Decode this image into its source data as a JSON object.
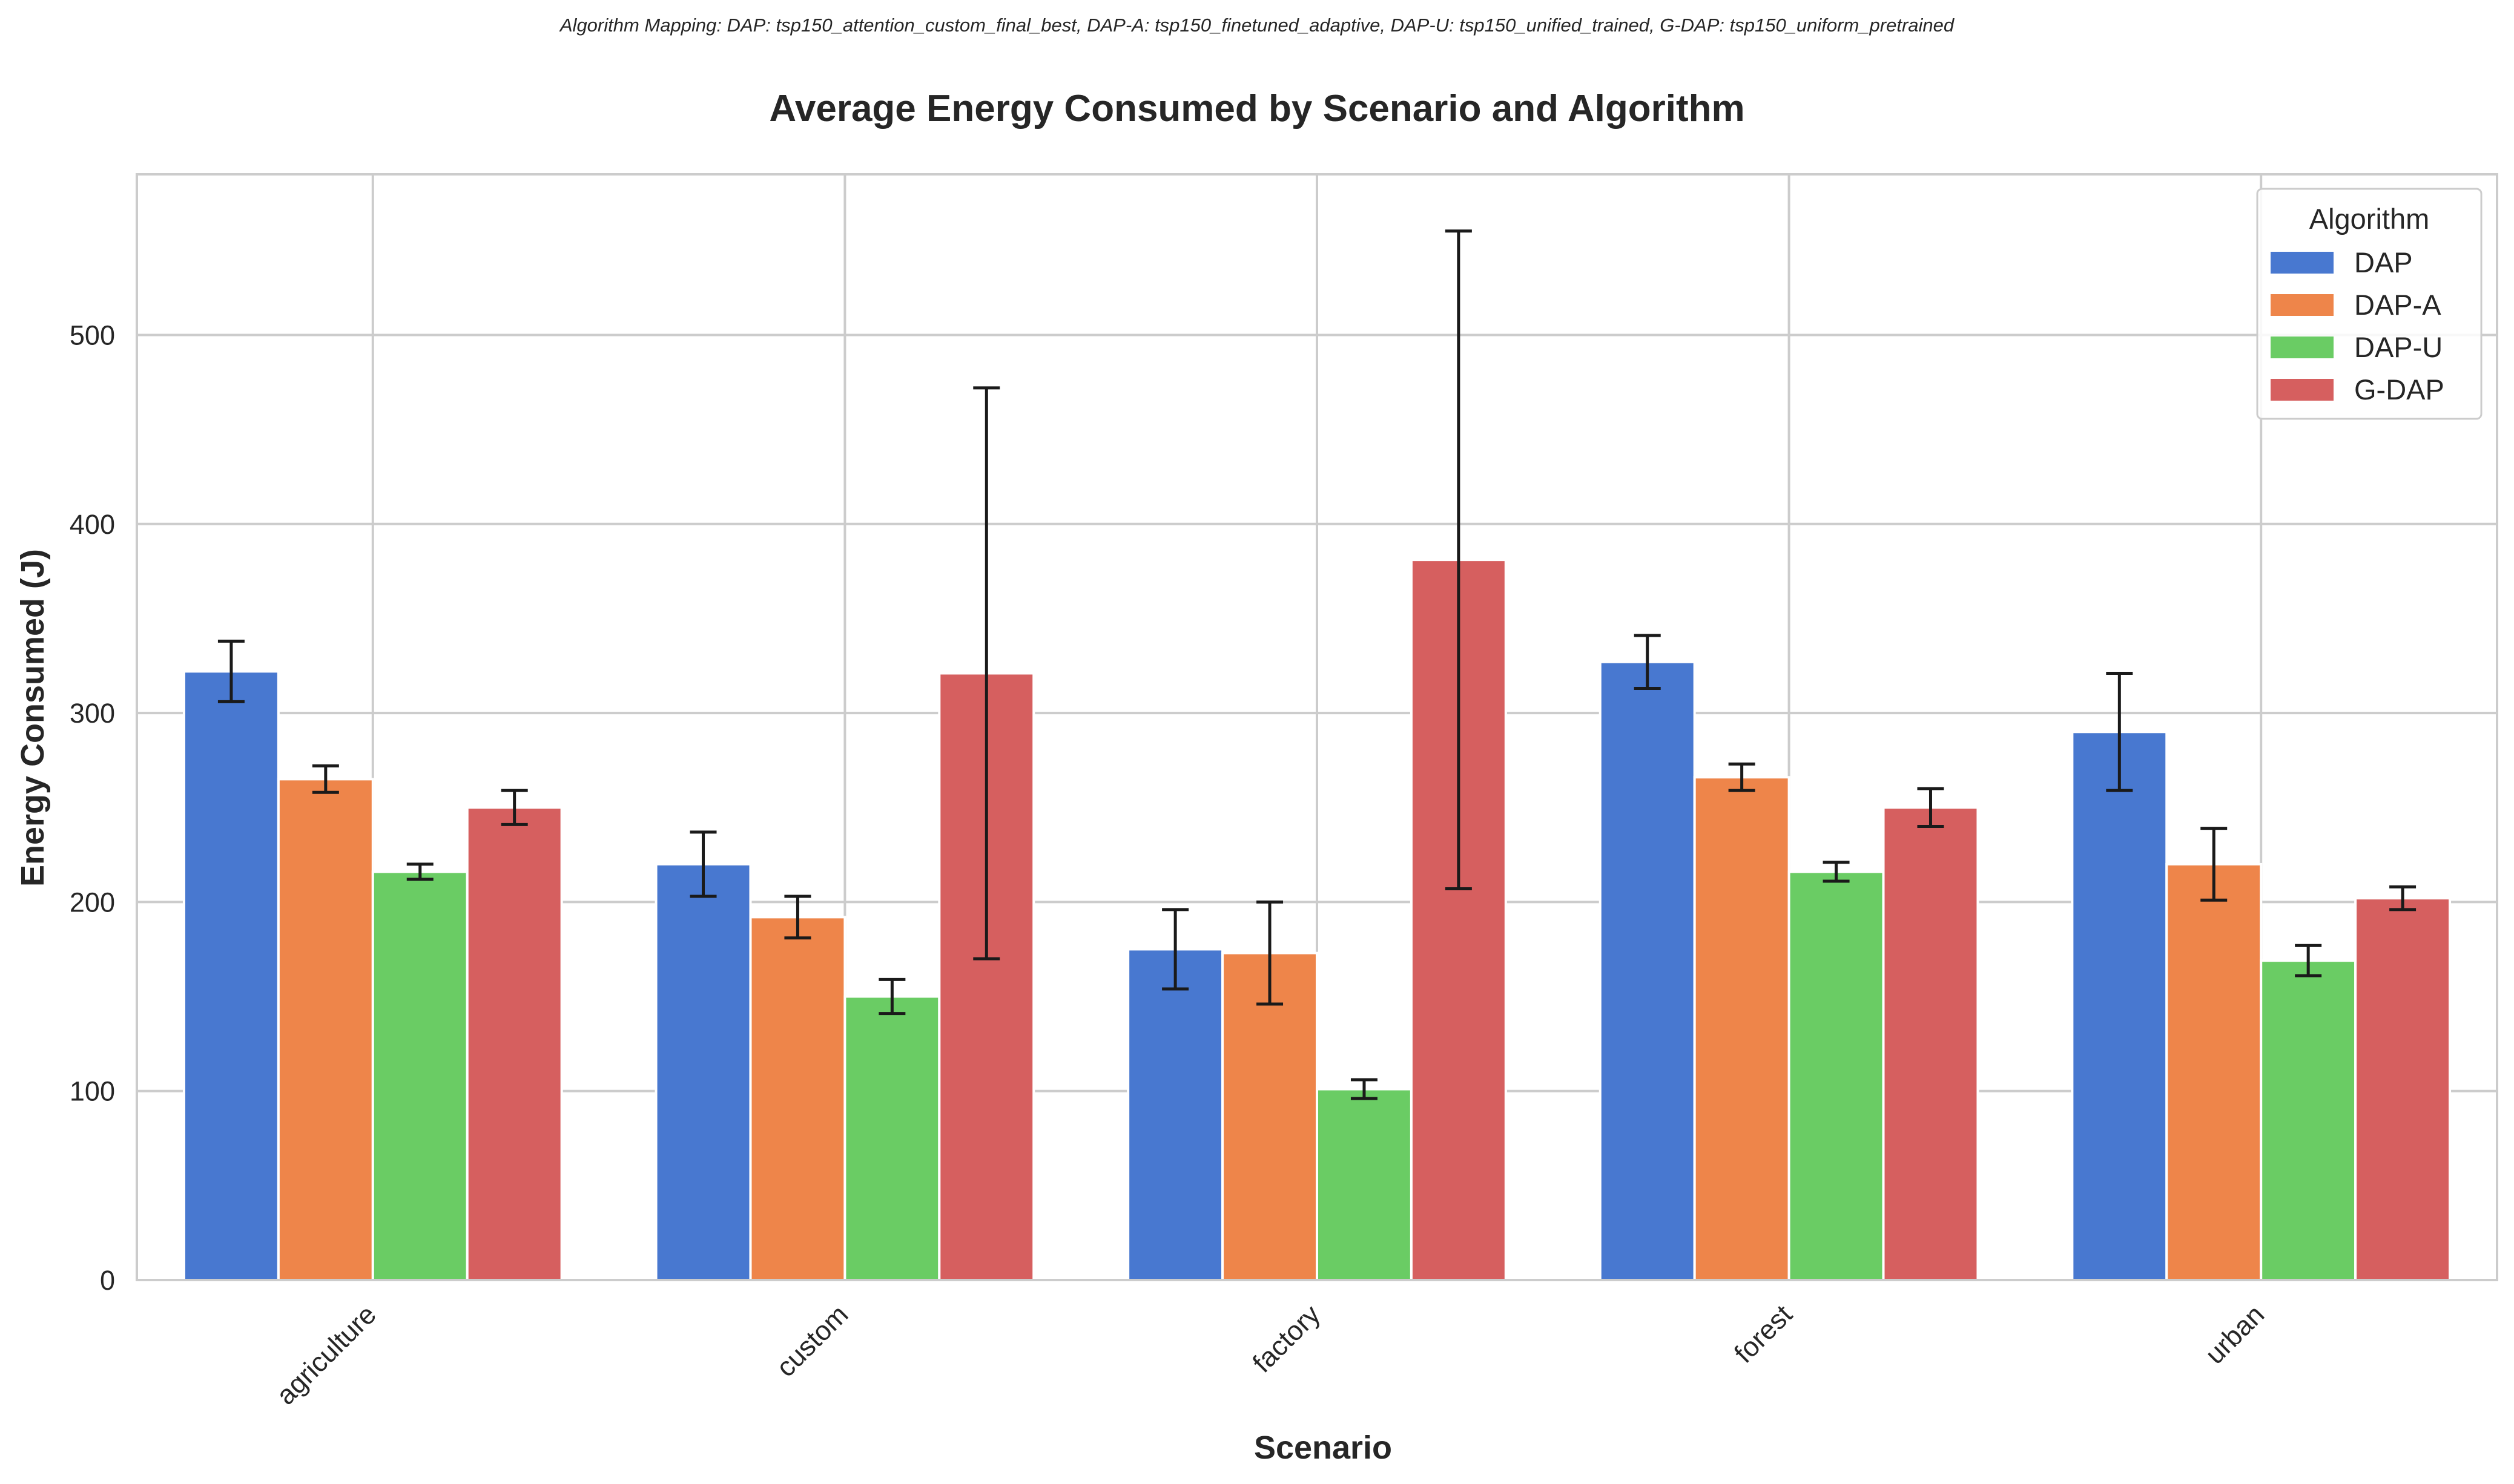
{
  "mapping_note": "Algorithm Mapping: DAP: tsp150_attention_custom_final_best, DAP-A: tsp150_finetuned_adaptive, DAP-U: tsp150_unified_trained, G-DAP: tsp150_uniform_pretrained",
  "chart_data": {
    "type": "bar",
    "title": "Average Energy Consumed by Scenario and Algorithm",
    "xlabel": "Scenario",
    "ylabel": "Energy Consumed (J)",
    "ylim": [
      0,
      585
    ],
    "yticks": [
      0,
      100,
      200,
      300,
      400,
      500
    ],
    "grid": true,
    "legend": {
      "title": "Algorithm",
      "placement": "top-right"
    },
    "categories": [
      "agriculture",
      "custom",
      "factory",
      "forest",
      "urban"
    ],
    "series": [
      {
        "name": "DAP",
        "color": "#4878d0",
        "values": [
          322,
          220,
          175,
          327,
          290
        ],
        "errors": [
          16,
          17,
          21,
          14,
          31
        ]
      },
      {
        "name": "DAP-A",
        "color": "#ee854a",
        "values": [
          265,
          192,
          173,
          266,
          220
        ],
        "errors": [
          7,
          11,
          27,
          7,
          19
        ]
      },
      {
        "name": "DAP-U",
        "color": "#6acc64",
        "values": [
          216,
          150,
          101,
          216,
          169
        ],
        "errors": [
          4,
          9,
          5,
          5,
          8
        ]
      },
      {
        "name": "G-DAP",
        "color": "#d65f5f",
        "values": [
          250,
          321,
          381,
          250,
          202
        ],
        "errors": [
          9,
          151,
          174,
          10,
          6
        ]
      }
    ]
  }
}
